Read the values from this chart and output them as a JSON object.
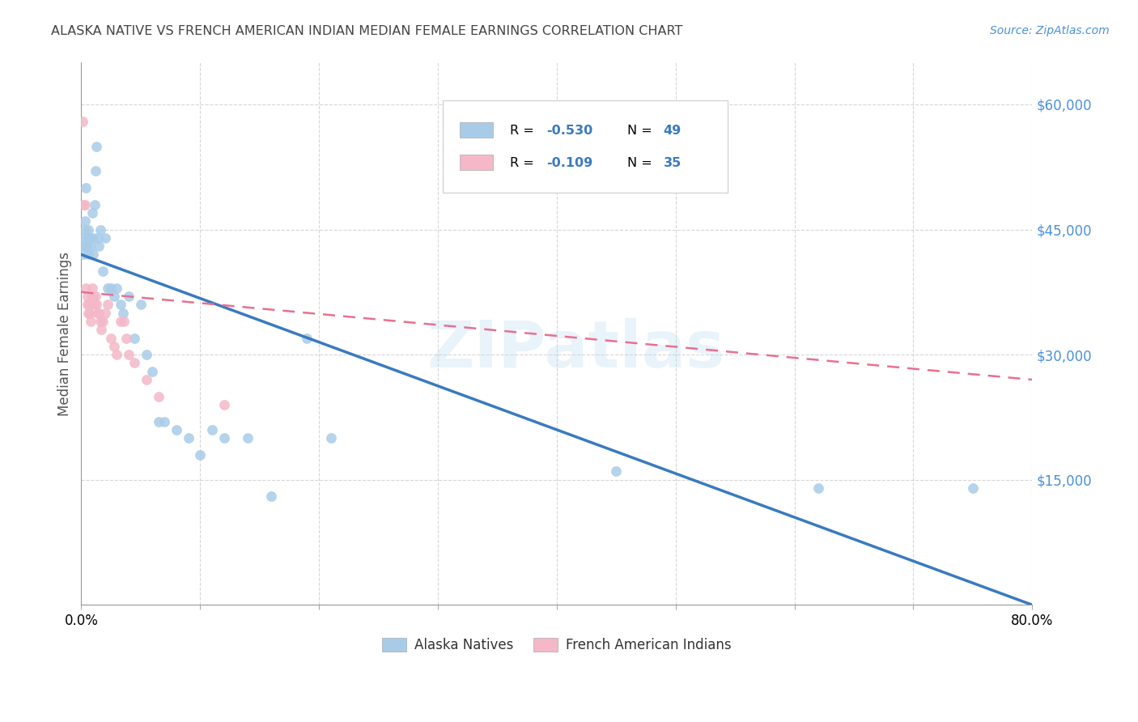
{
  "title": "ALASKA NATIVE VS FRENCH AMERICAN INDIAN MEDIAN FEMALE EARNINGS CORRELATION CHART",
  "source": "Source: ZipAtlas.com",
  "ylabel": "Median Female Earnings",
  "xlim": [
    0.0,
    0.8
  ],
  "ylim": [
    0,
    65000
  ],
  "ytick_labels": [
    "$15,000",
    "$30,000",
    "$45,000",
    "$60,000"
  ],
  "ytick_positions": [
    15000,
    30000,
    45000,
    60000
  ],
  "watermark": "ZIPatlas",
  "legend_blue_label": "Alaska Natives",
  "legend_pink_label": "French American Indians",
  "legend_r_blue": "-0.530",
  "legend_n_blue": "49",
  "legend_r_pink": "-0.109",
  "legend_n_pink": "35",
  "blue_scatter_x": [
    0.001,
    0.002,
    0.002,
    0.003,
    0.003,
    0.004,
    0.004,
    0.005,
    0.005,
    0.006,
    0.006,
    0.007,
    0.008,
    0.009,
    0.01,
    0.01,
    0.011,
    0.012,
    0.013,
    0.014,
    0.015,
    0.016,
    0.018,
    0.02,
    0.022,
    0.025,
    0.028,
    0.03,
    0.033,
    0.035,
    0.04,
    0.045,
    0.05,
    0.055,
    0.06,
    0.065,
    0.07,
    0.08,
    0.09,
    0.1,
    0.11,
    0.12,
    0.14,
    0.16,
    0.19,
    0.21,
    0.45,
    0.62,
    0.75
  ],
  "blue_scatter_y": [
    43000,
    44000,
    42000,
    45000,
    46000,
    43000,
    50000,
    44000,
    43000,
    45000,
    42000,
    44000,
    43000,
    47000,
    44000,
    42000,
    48000,
    52000,
    55000,
    44000,
    43000,
    45000,
    40000,
    44000,
    38000,
    38000,
    37000,
    38000,
    36000,
    35000,
    37000,
    32000,
    36000,
    30000,
    28000,
    22000,
    22000,
    21000,
    20000,
    18000,
    21000,
    20000,
    20000,
    13000,
    32000,
    20000,
    16000,
    14000,
    14000
  ],
  "pink_scatter_x": [
    0.001,
    0.002,
    0.003,
    0.004,
    0.005,
    0.005,
    0.006,
    0.006,
    0.007,
    0.007,
    0.008,
    0.009,
    0.009,
    0.01,
    0.011,
    0.012,
    0.013,
    0.014,
    0.015,
    0.016,
    0.017,
    0.018,
    0.02,
    0.022,
    0.025,
    0.028,
    0.03,
    0.033,
    0.036,
    0.038,
    0.04,
    0.045,
    0.055,
    0.065,
    0.12
  ],
  "pink_scatter_y": [
    58000,
    48000,
    48000,
    38000,
    36000,
    37000,
    35000,
    36000,
    35000,
    36000,
    34000,
    37000,
    38000,
    37000,
    36000,
    37000,
    36000,
    35000,
    35000,
    34000,
    33000,
    34000,
    35000,
    36000,
    32000,
    31000,
    30000,
    34000,
    34000,
    32000,
    30000,
    29000,
    27000,
    25000,
    24000
  ],
  "blue_line_x": [
    0.0,
    0.8
  ],
  "blue_line_y": [
    42000,
    0
  ],
  "pink_line_x": [
    0.0,
    0.8
  ],
  "pink_line_y": [
    37500,
    27000
  ],
  "blue_color": "#a8cce8",
  "pink_color": "#f4b8c8",
  "blue_line_color": "#3a7abf",
  "pink_line_color": "#e87090",
  "background_color": "#ffffff",
  "grid_color": "#cccccc",
  "title_color": "#444444",
  "source_color": "#4a90d9",
  "ytick_color": "#4a90d9"
}
